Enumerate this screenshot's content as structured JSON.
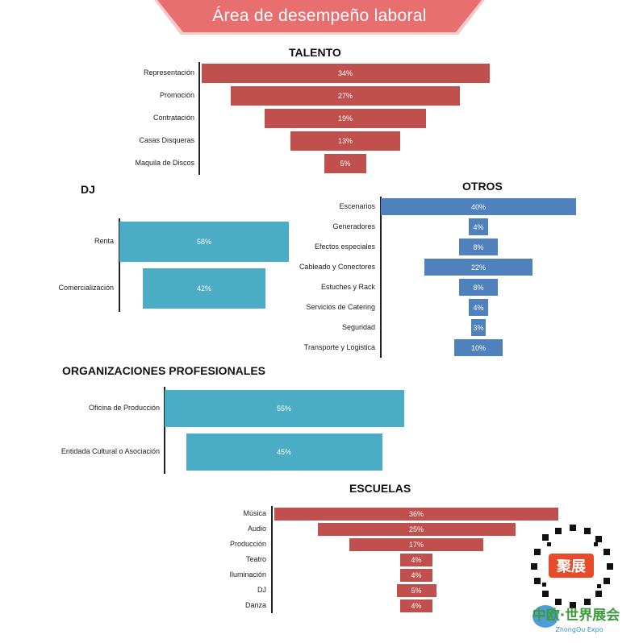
{
  "page_title": "Área de desempeño laboral",
  "chart_data": [
    {
      "id": "talento",
      "type": "bar",
      "orientation": "horizontal-funnel",
      "title": "TALENTO",
      "color": "#c0504d",
      "categories": [
        "Representación",
        "Promoción",
        "Contratación",
        "Casas Disqueras",
        "Maquila de Discos"
      ],
      "values": [
        34,
        27,
        19,
        13,
        5
      ],
      "labels": [
        "34%",
        "27%",
        "19%",
        "13%",
        "5%"
      ]
    },
    {
      "id": "dj",
      "type": "bar",
      "orientation": "horizontal-funnel",
      "title": "DJ",
      "color": "#4bacc6",
      "categories": [
        "Renta",
        "Comercialización"
      ],
      "values": [
        58,
        42
      ],
      "labels": [
        "58%",
        "42%"
      ]
    },
    {
      "id": "otros",
      "type": "bar",
      "orientation": "horizontal-funnel",
      "title": "OTROS",
      "color": "#4f81bd",
      "categories": [
        "Escenarios",
        "Generadores",
        "Efectos especiales",
        "Cableado y Conectores",
        "Estuches y Rack",
        "Servicios de Catering",
        "Seguridad",
        "Transporte y Logistica"
      ],
      "values": [
        40,
        4,
        8,
        22,
        8,
        4,
        3,
        10
      ],
      "labels": [
        "40%",
        "4%",
        "8%",
        "22%",
        "8%",
        "4%",
        "3%",
        "10%"
      ]
    },
    {
      "id": "organizaciones",
      "type": "bar",
      "orientation": "horizontal-funnel",
      "title": "ORGANIZACIONES PROFESIONALES",
      "color": "#4bacc6",
      "categories": [
        "Oficina de Producción",
        "Entidada Cultural o Asociación"
      ],
      "values": [
        55,
        45
      ],
      "labels": [
        "55%",
        "45%"
      ]
    },
    {
      "id": "escuelas",
      "type": "bar",
      "orientation": "horizontal-funnel",
      "title": "ESCUELAS",
      "color": "#c0504d",
      "categories": [
        "Música",
        "Audio",
        "Producción",
        "Teatro",
        "Iluminación",
        "DJ",
        "Danza"
      ],
      "values": [
        36,
        25,
        17,
        4,
        4,
        5,
        4
      ],
      "labels": [
        "36%",
        "25%",
        "17%",
        "4%",
        "4%",
        "5%",
        "4%"
      ]
    }
  ],
  "watermark": {
    "logo_text": "聚展",
    "brand_text": "中欧·世界展会",
    "brand_sub": "ZhongOu Expo"
  }
}
